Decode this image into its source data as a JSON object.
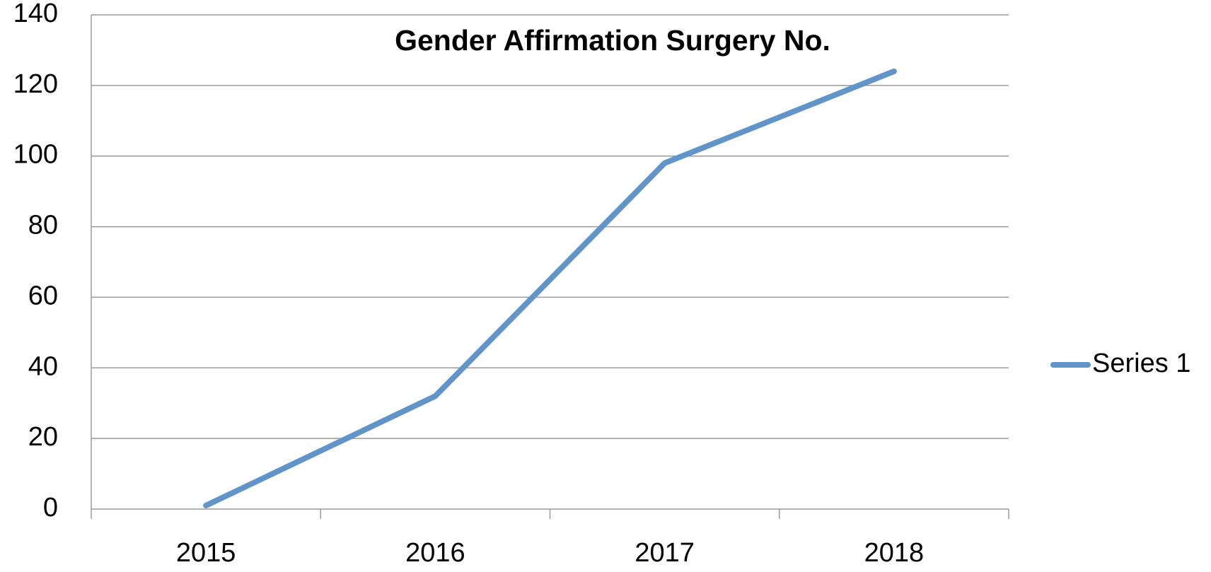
{
  "chart_data": {
    "type": "line",
    "title": "Gender Affirmation Surgery No.",
    "categories": [
      "2015",
      "2016",
      "2017",
      "2018"
    ],
    "series": [
      {
        "name": "Series 1",
        "color": "#6194c9",
        "values": [
          1,
          32,
          98,
          124
        ]
      }
    ],
    "ylim": [
      0,
      140
    ],
    "yticks": [
      0,
      20,
      40,
      60,
      80,
      100,
      120,
      140
    ],
    "grid": true,
    "legend": "right"
  }
}
